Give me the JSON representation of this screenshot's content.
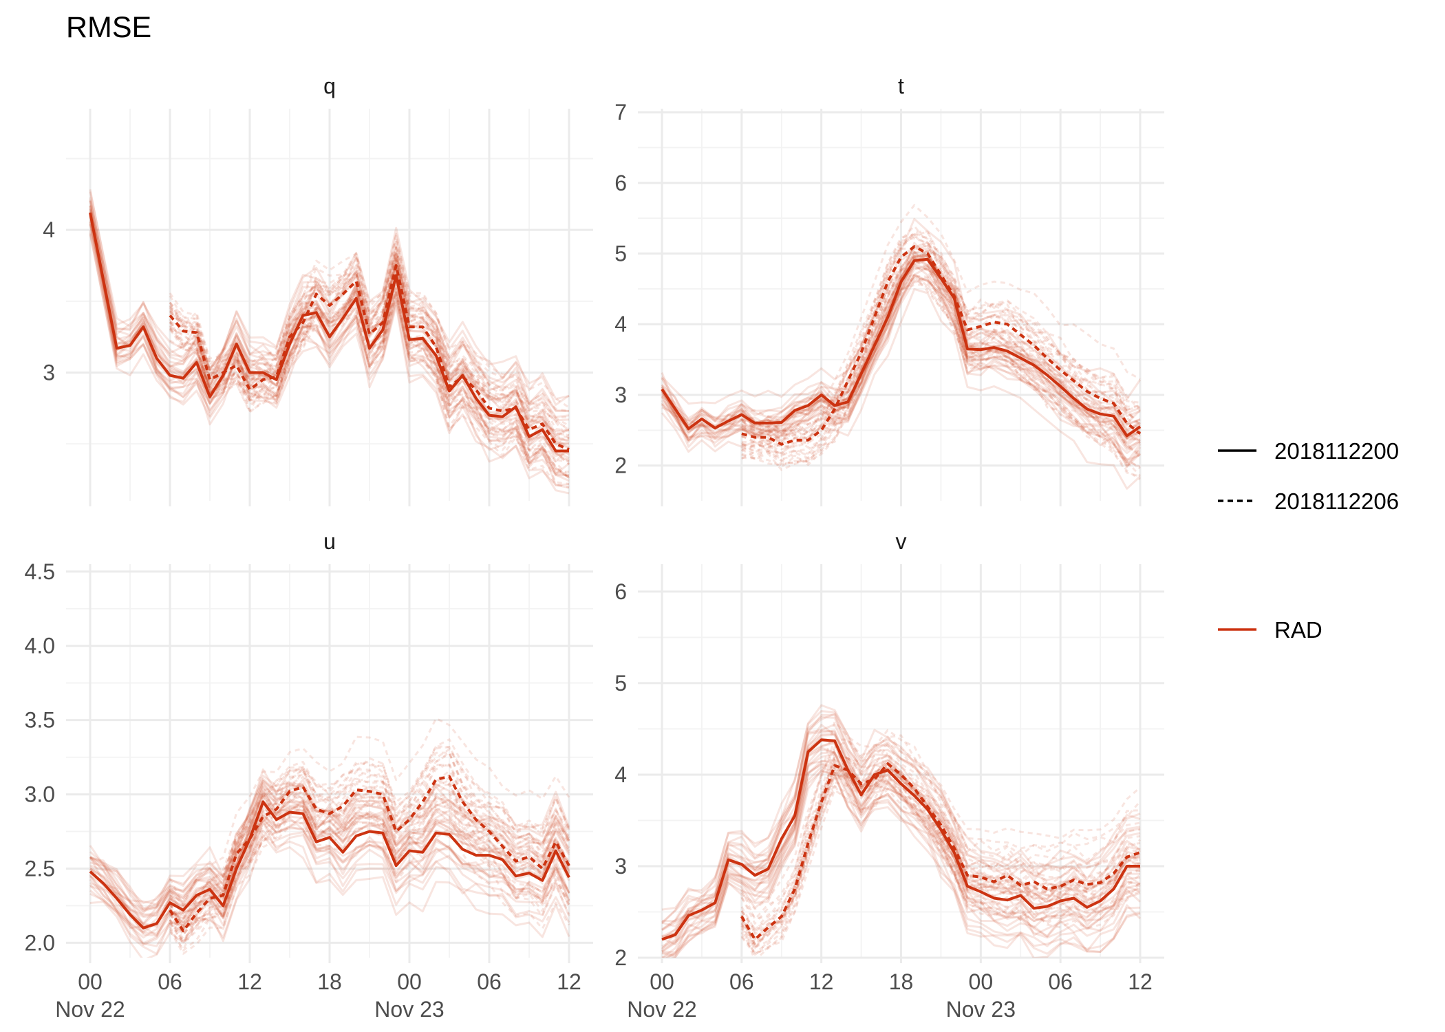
{
  "title": "RMSE",
  "colors": {
    "rad": "#cc3311",
    "grid_major": "#ebebeb",
    "grid_minor": "#f3f3f3"
  },
  "legend": {
    "linetype": [
      {
        "label": "2018112200",
        "style": "solid"
      },
      {
        "label": "2018112206",
        "style": "dashed"
      }
    ],
    "colour": [
      {
        "label": "RAD",
        "color": "#cc3311"
      }
    ]
  },
  "chart_data": {
    "type": "line",
    "x_axis": {
      "unit": "hours since 2018-11-22 00 UTC",
      "range": [
        0,
        36
      ],
      "ticks": [
        {
          "x": 0,
          "label": "00",
          "sub": "Nov 22"
        },
        {
          "x": 6,
          "label": "06",
          "sub": ""
        },
        {
          "x": 12,
          "label": "12",
          "sub": ""
        },
        {
          "x": 18,
          "label": "18",
          "sub": ""
        },
        {
          "x": 24,
          "label": "00",
          "sub": "Nov 23"
        },
        {
          "x": 30,
          "label": "06",
          "sub": ""
        },
        {
          "x": 36,
          "label": "12",
          "sub": ""
        }
      ]
    },
    "panels": [
      {
        "name": "q",
        "ylim": [
          2.1,
          4.85
        ],
        "yticks": [
          3,
          4
        ],
        "ytick_labels": [
          "3",
          "4"
        ],
        "show_x_labels": false,
        "series": [
          {
            "name": "2018112200",
            "style": "solid",
            "x": [
              0,
              2,
              3,
              4,
              5,
              6,
              7,
              8,
              9,
              10,
              11,
              12,
              13,
              14,
              15,
              16,
              17,
              18,
              19,
              20,
              21,
              22,
              23,
              24,
              25,
              26,
              27,
              28,
              29,
              30,
              31,
              32,
              33,
              34,
              35,
              36
            ],
            "y": [
              4.12,
              3.17,
              3.19,
              3.32,
              3.1,
              2.98,
              2.96,
              3.07,
              2.83,
              2.98,
              3.2,
              3.0,
              3.0,
              2.95,
              3.2,
              3.4,
              3.42,
              3.25,
              3.38,
              3.52,
              3.17,
              3.3,
              3.68,
              3.23,
              3.24,
              3.12,
              2.87,
              2.98,
              2.82,
              2.7,
              2.69,
              2.76,
              2.55,
              2.6,
              2.45,
              2.45
            ]
          },
          {
            "name": "2018112206",
            "style": "dashed",
            "x": [
              6,
              7,
              8,
              9,
              10,
              11,
              12,
              13,
              14,
              15,
              16,
              17,
              18,
              19,
              20,
              21,
              22,
              23,
              24,
              25,
              26,
              27,
              28,
              29,
              30,
              31,
              32,
              33,
              34,
              35,
              36
            ],
            "y": [
              3.4,
              3.29,
              3.28,
              2.95,
              3.0,
              3.05,
              2.88,
              2.95,
              2.97,
              3.25,
              3.35,
              3.55,
              3.47,
              3.55,
              3.64,
              3.27,
              3.35,
              3.75,
              3.32,
              3.32,
              3.18,
              2.9,
              2.97,
              2.88,
              2.75,
              2.73,
              2.75,
              2.6,
              2.64,
              2.5,
              2.46
            ]
          }
        ]
      },
      {
        "name": "t",
        "ylim": [
          1.5,
          7.05
        ],
        "yticks": [
          2,
          3,
          4,
          5,
          6,
          7
        ],
        "ytick_labels": [
          "2",
          "3",
          "4",
          "5",
          "6",
          "7"
        ],
        "show_x_labels": false,
        "series": [
          {
            "name": "2018112200",
            "style": "solid",
            "x": [
              0,
              1,
              2,
              3,
              4,
              5,
              6,
              7,
              8,
              9,
              10,
              11,
              12,
              13,
              14,
              15,
              16,
              17,
              18,
              19,
              20,
              21,
              22,
              23,
              24,
              25,
              26,
              27,
              28,
              29,
              30,
              31,
              32,
              33,
              34,
              35,
              36
            ],
            "y": [
              3.08,
              2.8,
              2.52,
              2.66,
              2.53,
              2.63,
              2.72,
              2.6,
              2.6,
              2.61,
              2.78,
              2.85,
              3.0,
              2.85,
              2.9,
              3.3,
              3.7,
              4.1,
              4.6,
              4.9,
              4.92,
              4.65,
              4.37,
              3.65,
              3.64,
              3.67,
              3.62,
              3.52,
              3.42,
              3.28,
              3.12,
              2.95,
              2.8,
              2.73,
              2.7,
              2.42,
              2.55
            ]
          },
          {
            "name": "2018112206",
            "style": "dashed",
            "x": [
              6,
              7,
              8,
              9,
              10,
              11,
              12,
              13,
              14,
              15,
              16,
              17,
              18,
              19,
              20,
              21,
              22,
              23,
              24,
              25,
              26,
              27,
              28,
              29,
              30,
              31,
              32,
              33,
              34,
              35,
              36
            ],
            "y": [
              2.45,
              2.4,
              2.4,
              2.3,
              2.36,
              2.36,
              2.5,
              2.8,
              3.2,
              3.6,
              4.1,
              4.6,
              4.95,
              5.1,
              5.0,
              4.7,
              4.4,
              3.92,
              3.97,
              4.03,
              4.0,
              3.85,
              3.7,
              3.52,
              3.35,
              3.2,
              3.05,
              2.95,
              2.88,
              2.6,
              2.45
            ]
          }
        ]
      },
      {
        "name": "u",
        "ylim": [
          1.9,
          4.55
        ],
        "yticks": [
          2.0,
          2.5,
          3.0,
          3.5,
          4.0,
          4.5
        ],
        "ytick_labels": [
          "2.0",
          "2.5",
          "3.0",
          "3.5",
          "4.0",
          "4.5"
        ],
        "show_x_labels": true,
        "series": [
          {
            "name": "2018112200",
            "style": "solid",
            "x": [
              0,
              1,
              2,
              3,
              4,
              5,
              6,
              7,
              8,
              9,
              10,
              11,
              12,
              13,
              14,
              15,
              16,
              17,
              18,
              19,
              20,
              21,
              22,
              23,
              24,
              25,
              26,
              27,
              28,
              29,
              30,
              31,
              32,
              33,
              34,
              35,
              36
            ],
            "y": [
              2.48,
              2.4,
              2.3,
              2.19,
              2.1,
              2.13,
              2.27,
              2.22,
              2.32,
              2.36,
              2.25,
              2.5,
              2.7,
              2.95,
              2.83,
              2.88,
              2.87,
              2.68,
              2.71,
              2.61,
              2.72,
              2.75,
              2.74,
              2.52,
              2.62,
              2.61,
              2.74,
              2.73,
              2.63,
              2.59,
              2.59,
              2.56,
              2.45,
              2.47,
              2.42,
              2.62,
              2.44
            ]
          },
          {
            "name": "2018112206",
            "style": "dashed",
            "x": [
              6,
              7,
              8,
              9,
              10,
              11,
              12,
              13,
              14,
              15,
              16,
              17,
              18,
              19,
              20,
              21,
              22,
              23,
              24,
              25,
              26,
              27,
              28,
              29,
              30,
              31,
              32,
              33,
              34,
              35,
              36
            ],
            "y": [
              2.22,
              2.08,
              2.2,
              2.3,
              2.32,
              2.6,
              2.7,
              2.85,
              2.9,
              3.02,
              3.05,
              2.9,
              2.87,
              2.92,
              3.03,
              3.02,
              3.0,
              2.75,
              2.83,
              2.95,
              3.1,
              3.12,
              2.95,
              2.83,
              2.75,
              2.65,
              2.55,
              2.58,
              2.5,
              2.68,
              2.52
            ]
          }
        ]
      },
      {
        "name": "v",
        "ylim": [
          2.0,
          6.3
        ],
        "yticks": [
          2,
          3,
          4,
          5,
          6
        ],
        "ytick_labels": [
          "2",
          "3",
          "4",
          "5",
          "6"
        ],
        "show_x_labels": true,
        "series": [
          {
            "name": "2018112200",
            "style": "solid",
            "x": [
              0,
              1,
              2,
              3,
              4,
              5,
              6,
              7,
              8,
              9,
              10,
              11,
              12,
              13,
              14,
              15,
              16,
              17,
              18,
              19,
              20,
              21,
              22,
              23,
              24,
              25,
              26,
              27,
              28,
              29,
              30,
              31,
              32,
              33,
              34,
              35,
              36
            ],
            "y": [
              2.2,
              2.25,
              2.46,
              2.52,
              2.6,
              3.07,
              3.02,
              2.9,
              2.97,
              3.3,
              3.55,
              4.25,
              4.38,
              4.37,
              4.05,
              3.78,
              4.0,
              4.05,
              3.9,
              3.77,
              3.62,
              3.4,
              3.15,
              2.78,
              2.72,
              2.65,
              2.63,
              2.68,
              2.54,
              2.56,
              2.62,
              2.65,
              2.55,
              2.62,
              2.75,
              3.0,
              3.0
            ]
          },
          {
            "name": "2018112206",
            "style": "dashed",
            "x": [
              6,
              7,
              8,
              9,
              10,
              11,
              12,
              13,
              14,
              15,
              16,
              17,
              18,
              19,
              20,
              21,
              22,
              23,
              24,
              25,
              26,
              27,
              28,
              29,
              30,
              31,
              32,
              33,
              34,
              35,
              36
            ],
            "y": [
              2.45,
              2.2,
              2.33,
              2.45,
              2.75,
              3.25,
              3.7,
              4.1,
              4.05,
              3.9,
              3.95,
              4.12,
              4.0,
              3.85,
              3.65,
              3.45,
              3.2,
              2.9,
              2.88,
              2.83,
              2.9,
              2.79,
              2.83,
              2.75,
              2.78,
              2.85,
              2.8,
              2.82,
              2.92,
              3.1,
              3.15
            ]
          }
        ]
      }
    ]
  }
}
